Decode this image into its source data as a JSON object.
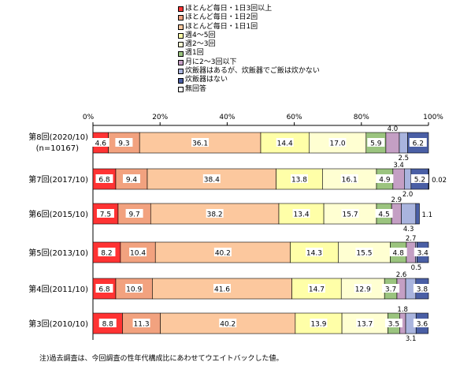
{
  "chart_data": {
    "type": "bar",
    "orientation": "horizontal",
    "stacked": true,
    "xlim": [
      0,
      100
    ],
    "x_tick_labels": [
      "0%",
      "20%",
      "40%",
      "60%",
      "80%",
      "100%"
    ],
    "legend_position": "top",
    "categories": [
      {
        "label": "第8回(2020/10)",
        "sublabel": "(n=10167)"
      },
      {
        "label": "第7回(2017/10)",
        "sublabel": ""
      },
      {
        "label": "第6回(2015/10)",
        "sublabel": ""
      },
      {
        "label": "第5回(2013/10)",
        "sublabel": ""
      },
      {
        "label": "第4回(2011/10)",
        "sublabel": ""
      },
      {
        "label": "第3回(2010/10)",
        "sublabel": ""
      }
    ],
    "series": [
      {
        "name": "ほとんど毎日・1日3回以上",
        "color": "#ff3333",
        "values": [
          4.6,
          6.8,
          7.5,
          8.2,
          6.8,
          8.8
        ],
        "labels": [
          "4.6",
          "6.8",
          "7.5",
          "8.2",
          "6.8",
          "8.8"
        ]
      },
      {
        "name": "ほとんど毎日・1日2回",
        "color": "#f2a27f",
        "values": [
          9.3,
          9.4,
          9.7,
          10.4,
          10.9,
          11.3
        ],
        "labels": [
          "9.3",
          "9.4",
          "9.7",
          "10.4",
          "10.9",
          "11.3"
        ]
      },
      {
        "name": "ほとんど毎日・1日1回",
        "color": "#fcc89e",
        "values": [
          36.1,
          38.4,
          38.2,
          40.2,
          41.6,
          40.2
        ],
        "labels": [
          "36.1",
          "38.4",
          "38.2",
          "40.2",
          "41.6",
          "40.2"
        ]
      },
      {
        "name": "週4～5回",
        "color": "#ffffa8",
        "values": [
          14.4,
          13.8,
          13.4,
          14.3,
          14.7,
          13.9
        ],
        "labels": [
          "14.4",
          "13.8",
          "13.4",
          "14.3",
          "14.7",
          "13.9"
        ]
      },
      {
        "name": "週2～3回",
        "color": "#ffffd2",
        "values": [
          17.0,
          16.1,
          15.7,
          15.5,
          12.9,
          13.7
        ],
        "labels": [
          "17.0",
          "16.1",
          "15.7",
          "15.5",
          "12.9",
          "13.7"
        ]
      },
      {
        "name": "週1回",
        "color": "#9bc47f",
        "values": [
          5.9,
          4.9,
          4.5,
          4.8,
          3.7,
          3.5
        ],
        "labels": [
          "5.9",
          "4.9",
          "4.5",
          "4.8",
          "3.7",
          "3.5"
        ]
      },
      {
        "name": "月に2～3回以下",
        "color": "#c49fc4",
        "values": [
          4.0,
          3.4,
          2.9,
          2.7,
          2.6,
          1.8
        ],
        "labels": [
          "4.0",
          "3.4",
          "2.9",
          "2.7",
          "2.6",
          "1.8"
        ]
      },
      {
        "name": "炊飯器はあるが、炊飯器でご飯は炊かない",
        "color": "#a9b4de",
        "values": [
          2.5,
          2.0,
          4.3,
          0.5,
          3.0,
          3.1
        ],
        "labels": [
          "2.5",
          "2.0",
          "4.3",
          "0.5",
          "",
          "3.1"
        ]
      },
      {
        "name": "炊飯器はない",
        "color": "#4a5fa5",
        "values": [
          6.2,
          5.2,
          1.1,
          3.4,
          3.8,
          3.6
        ],
        "labels": [
          "6.2",
          "5.2",
          "1.1",
          "3.4",
          "3.8",
          "3.6"
        ]
      },
      {
        "name": "無回答",
        "color": "#ffffff",
        "values": [
          0.0,
          0.02,
          0.0,
          0.0,
          0.0,
          0.0
        ],
        "labels": [
          "",
          "0.02",
          "",
          "",
          "",
          ""
        ]
      }
    ]
  },
  "note": "注)過去調査は、今回調査の性年代構成比にあわせてウエイトバックした値。"
}
